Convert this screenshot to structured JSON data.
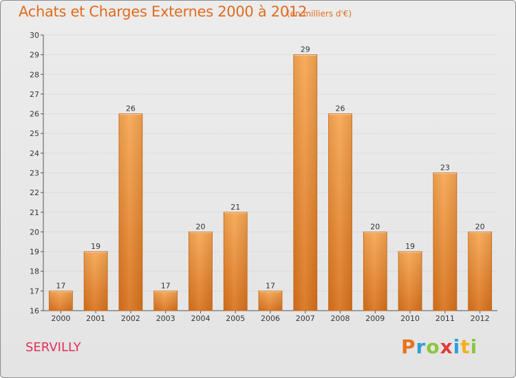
{
  "title": "Achats et Charges Externes 2000 à 2012",
  "subtitle": "(en milliers d'€)",
  "commune": "SERVILLY",
  "logo": {
    "letters": [
      "P",
      "r",
      "o",
      "x",
      "i",
      "t",
      "i"
    ],
    "colors": [
      "#e8731c",
      "#2f9fd6",
      "#8cc63f",
      "#e13b3b",
      "#2f9fd6",
      "#f2b01e",
      "#8cc63f"
    ]
  },
  "colors": {
    "bar_light": "#f7a652",
    "bar_dark": "#d9721c",
    "title": "#e06b1e",
    "commune": "#e0305c"
  },
  "chart_data": {
    "type": "bar",
    "title": "Achats et Charges Externes 2000 à 2012",
    "subtitle": "(en milliers d'€)",
    "categories": [
      "2000",
      "2001",
      "2002",
      "2003",
      "2004",
      "2005",
      "2006",
      "2007",
      "2008",
      "2009",
      "2010",
      "2011",
      "2012"
    ],
    "values": [
      17,
      19,
      26,
      17,
      20,
      21,
      17,
      29,
      26,
      20,
      19,
      23,
      20
    ],
    "ylim": [
      16,
      30
    ],
    "yticks": [
      16,
      17,
      18,
      19,
      20,
      21,
      22,
      23,
      24,
      25,
      26,
      27,
      28,
      29,
      30
    ],
    "grid": true,
    "xlabel": "",
    "ylabel": ""
  }
}
